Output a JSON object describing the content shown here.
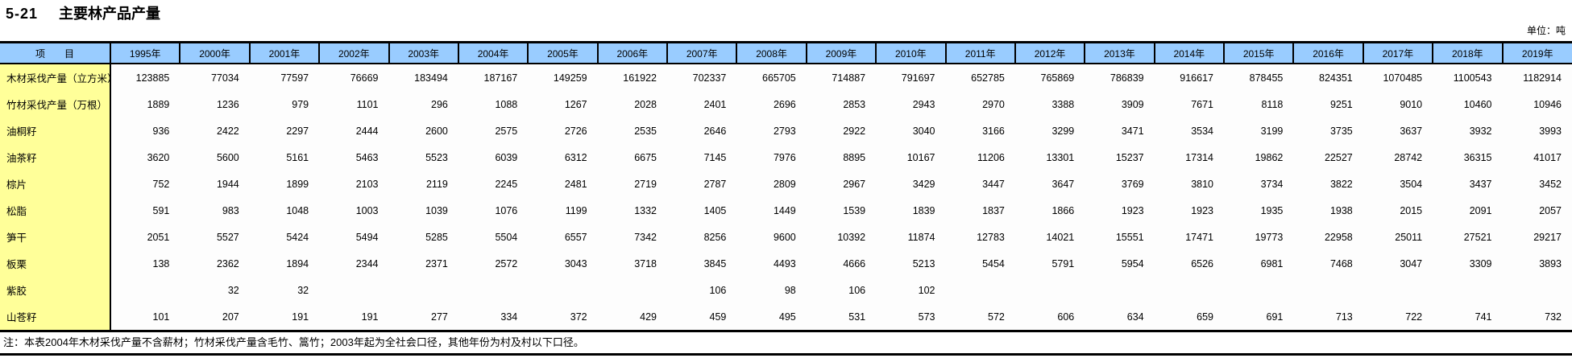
{
  "page": {
    "title_code": "5-21",
    "title_text": "主要林产品产量",
    "unit_label": "单位：吨",
    "note": "注：本表2004年木材采伐产量不含薪材；竹材采伐产量含毛竹、篙竹；2003年起为全社会口径，其他年份为村及村以下口径。"
  },
  "colors": {
    "header_bg": "#99CCFF",
    "item_col_bg": "#FFFF99",
    "border": "#000000"
  },
  "table": {
    "item_header": "项　　目",
    "year_headers": [
      "1995年",
      "2000年",
      "2001年",
      "2002年",
      "2003年",
      "2004年",
      "2005年",
      "2006年",
      "2007年",
      "2008年",
      "2009年",
      "2010年",
      "2011年",
      "2012年",
      "2013年",
      "2014年",
      "2015年",
      "2016年",
      "2017年",
      "2018年",
      "2019年"
    ],
    "rows": [
      {
        "label": "木材采伐产量（立方米）",
        "values": [
          "123885",
          "77034",
          "77597",
          "76669",
          "183494",
          "187167",
          "149259",
          "161922",
          "702337",
          "665705",
          "714887",
          "791697",
          "652785",
          "765869",
          "786839",
          "916617",
          "878455",
          "824351",
          "1070485",
          "1100543",
          "1182914"
        ]
      },
      {
        "label": "竹材采伐产量（万根）",
        "values": [
          "1889",
          "1236",
          "979",
          "1101",
          "296",
          "1088",
          "1267",
          "2028",
          "2401",
          "2696",
          "2853",
          "2943",
          "2970",
          "3388",
          "3909",
          "7671",
          "8118",
          "9251",
          "9010",
          "10460",
          "10946"
        ]
      },
      {
        "label": "油桐籽",
        "values": [
          "936",
          "2422",
          "2297",
          "2444",
          "2600",
          "2575",
          "2726",
          "2535",
          "2646",
          "2793",
          "2922",
          "3040",
          "3166",
          "3299",
          "3471",
          "3534",
          "3199",
          "3735",
          "3637",
          "3932",
          "3993"
        ]
      },
      {
        "label": "油茶籽",
        "values": [
          "3620",
          "5600",
          "5161",
          "5463",
          "5523",
          "6039",
          "6312",
          "6675",
          "7145",
          "7976",
          "8895",
          "10167",
          "11206",
          "13301",
          "15237",
          "17314",
          "19862",
          "22527",
          "28742",
          "36315",
          "41017"
        ]
      },
      {
        "label": "棕片",
        "values": [
          "752",
          "1944",
          "1899",
          "2103",
          "2119",
          "2245",
          "2481",
          "2719",
          "2787",
          "2809",
          "2967",
          "3429",
          "3447",
          "3647",
          "3769",
          "3810",
          "3734",
          "3822",
          "3504",
          "3437",
          "3452"
        ]
      },
      {
        "label": "松脂",
        "values": [
          "591",
          "983",
          "1048",
          "1003",
          "1039",
          "1076",
          "1199",
          "1332",
          "1405",
          "1449",
          "1539",
          "1839",
          "1837",
          "1866",
          "1923",
          "1923",
          "1935",
          "1938",
          "2015",
          "2091",
          "2057"
        ]
      },
      {
        "label": "笋干",
        "values": [
          "2051",
          "5527",
          "5424",
          "5494",
          "5285",
          "5504",
          "6557",
          "7342",
          "8256",
          "9600",
          "10392",
          "11874",
          "12783",
          "14021",
          "15551",
          "17471",
          "19773",
          "22958",
          "25011",
          "27521",
          "29217"
        ]
      },
      {
        "label": "板栗",
        "values": [
          "138",
          "2362",
          "1894",
          "2344",
          "2371",
          "2572",
          "3043",
          "3718",
          "3845",
          "4493",
          "4666",
          "5213",
          "5454",
          "5791",
          "5954",
          "6526",
          "6981",
          "7468",
          "3047",
          "3309",
          "3893"
        ]
      },
      {
        "label": "紫胶",
        "values": [
          "",
          "32",
          "32",
          "",
          "",
          "",
          "",
          "",
          "106",
          "98",
          "106",
          "102",
          "",
          "",
          "",
          "",
          "",
          "",
          "",
          "",
          ""
        ]
      },
      {
        "label": "山苍籽",
        "values": [
          "101",
          "207",
          "191",
          "191",
          "277",
          "334",
          "372",
          "429",
          "459",
          "495",
          "531",
          "573",
          "572",
          "606",
          "634",
          "659",
          "691",
          "713",
          "722",
          "741",
          "732"
        ]
      }
    ]
  }
}
